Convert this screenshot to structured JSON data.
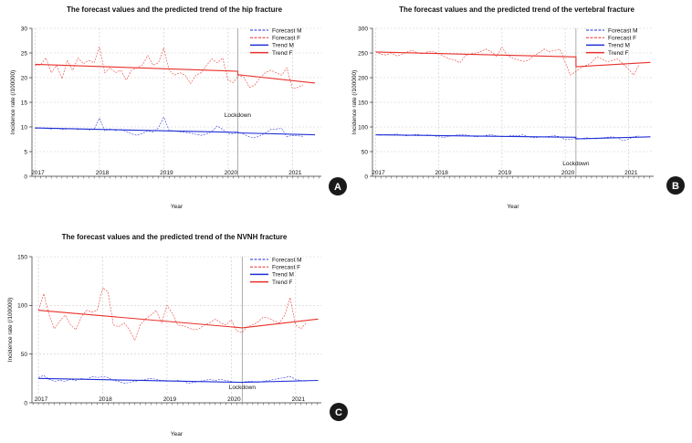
{
  "colors": {
    "male": "#1f2fd6",
    "female": "#e8302a",
    "grid": "#c9c9c9",
    "lockdown": "#9a9a9a",
    "badge": "#1a1a1a"
  },
  "chart_data": [
    {
      "type": "line",
      "panel": "A",
      "title": "The forecast values and the predicted trend of the hip fracture",
      "xlabel": "Year",
      "ylabel": "Incidence rate (/100000)",
      "ylim": [
        0,
        30
      ],
      "yticks": [
        0,
        5,
        10,
        15,
        20,
        25,
        30
      ],
      "xlim": [
        2016.95,
        2021.45
      ],
      "xticks": [
        2017,
        2018,
        2019,
        2020,
        2021
      ],
      "annotation": {
        "text": "Lockdown",
        "x": 2020.15
      },
      "legend": [
        "Forecast M",
        "Forecast F",
        "Trend M",
        "Trend F"
      ],
      "series": [
        {
          "name": "Forecast M",
          "style": "dashed",
          "x_start": 2017.0,
          "x_step": 0.0833,
          "values": [
            9.7,
            9.8,
            9.7,
            9.6,
            9.8,
            9.5,
            9.6,
            9.7,
            9.5,
            9.6,
            9.4,
            9.5,
            11.8,
            9.2,
            9.6,
            9.3,
            9.5,
            9.1,
            8.6,
            8.3,
            8.7,
            9.2,
            9.0,
            9.8,
            12.0,
            9.3,
            9.2,
            9.0,
            8.9,
            8.8,
            8.5,
            8.3,
            8.6,
            9.1,
            10.2,
            9.5,
            8.7,
            8.6,
            9.0,
            8.5,
            8.0,
            7.8,
            8.2,
            8.8,
            9.5,
            9.6,
            9.7,
            8.0,
            8.3,
            8.2,
            8.1
          ]
        },
        {
          "name": "Forecast F",
          "style": "dashed",
          "x_start": 2017.0,
          "x_step": 0.0833,
          "values": [
            22.5,
            22.6,
            24.0,
            21.0,
            22.5,
            19.8,
            23.5,
            21.5,
            24.0,
            22.8,
            23.5,
            23.0,
            26.2,
            21.0,
            22.0,
            21.0,
            21.5,
            19.5,
            21.5,
            22.0,
            22.5,
            24.5,
            22.5,
            23.0,
            26.0,
            21.5,
            20.5,
            21.0,
            20.5,
            18.8,
            20.5,
            21.0,
            22.5,
            23.8,
            23.0,
            24.0,
            19.5,
            19.0,
            20.5,
            20.0,
            18.0,
            18.5,
            20.0,
            21.0,
            21.5,
            21.0,
            20.5,
            22.0,
            17.8,
            18.0,
            18.5
          ]
        },
        {
          "name": "Trend M",
          "style": "solid",
          "x": [
            2017.0,
            2020.15,
            2020.15,
            2021.35
          ],
          "values": [
            9.8,
            8.9,
            8.8,
            8.4
          ]
        },
        {
          "name": "Trend F",
          "style": "solid",
          "x": [
            2017.0,
            2020.15,
            2020.15,
            2021.35
          ],
          "values": [
            22.7,
            21.3,
            20.6,
            18.9
          ]
        }
      ]
    },
    {
      "type": "line",
      "panel": "B",
      "title": "The forecast values and the predicted trend of the vertebral fracture",
      "xlabel": "Year",
      "ylabel": "Incidence rate (/100000)",
      "ylim": [
        0,
        300
      ],
      "yticks": [
        0,
        50,
        100,
        150,
        200,
        250,
        300
      ],
      "xlim": [
        2016.95,
        2021.4
      ],
      "xticks": [
        2017,
        2018,
        2019,
        2020,
        2021
      ],
      "annotation": {
        "text": "Lockdown",
        "x": 2020.17
      },
      "legend": [
        "Forecast M",
        "Forecast F",
        "Trend M",
        "Trend F"
      ],
      "series": [
        {
          "name": "Forecast M",
          "style": "dashed",
          "x_start": 2017.0,
          "x_step": 0.0833,
          "values": [
            84,
            83,
            85,
            84,
            86,
            83,
            82,
            84,
            85,
            83,
            84,
            82,
            80,
            79,
            81,
            83,
            85,
            84,
            82,
            80,
            81,
            83,
            84,
            82,
            80,
            81,
            83,
            82,
            84,
            80,
            78,
            79,
            80,
            81,
            82,
            80,
            74,
            75,
            77,
            76,
            78,
            77,
            76,
            78,
            79,
            80,
            78,
            72,
            75,
            80,
            82
          ]
        },
        {
          "name": "Forecast F",
          "style": "dashed",
          "x_start": 2017.0,
          "x_step": 0.0833,
          "values": [
            252,
            248,
            246,
            250,
            244,
            247,
            252,
            255,
            250,
            248,
            253,
            252,
            249,
            243,
            238,
            236,
            230,
            244,
            248,
            250,
            253,
            258,
            252,
            243,
            262,
            245,
            240,
            236,
            233,
            235,
            244,
            250,
            258,
            253,
            255,
            258,
            232,
            205,
            212,
            220,
            225,
            230,
            242,
            238,
            232,
            235,
            238,
            228,
            218,
            205,
            225
          ]
        },
        {
          "name": "Trend M",
          "style": "solid",
          "x": [
            2017.0,
            2020.17,
            2020.17,
            2021.35
          ],
          "values": [
            84,
            79,
            76,
            80
          ]
        },
        {
          "name": "Trend F",
          "style": "solid",
          "x": [
            2017.0,
            2020.17,
            2020.17,
            2021.35
          ],
          "values": [
            252,
            242,
            222,
            231
          ]
        }
      ]
    },
    {
      "type": "line",
      "panel": "C",
      "title": "The forecast values and the predicted trend of the NVNH fracture",
      "xlabel": "Year",
      "ylabel": "Incidence rate (/100000)",
      "ylim": [
        0,
        150
      ],
      "yticks": [
        0,
        50,
        100,
        150
      ],
      "xlim": [
        2016.9,
        2021.4
      ],
      "xticks": [
        2017,
        2018,
        2019,
        2020,
        2021
      ],
      "annotation": {
        "text": "Lockdown",
        "x": 2020.17
      },
      "legend": [
        "Forecast M",
        "Forecast F",
        "Trend M",
        "Trend F"
      ],
      "series": [
        {
          "name": "Forecast M",
          "style": "dashed",
          "x_start": 2017.0,
          "x_step": 0.0833,
          "values": [
            26,
            28,
            24,
            22,
            23,
            22,
            24,
            23,
            25,
            24,
            27,
            26,
            27,
            26,
            23,
            22,
            20,
            21,
            22,
            23,
            24,
            25,
            24,
            23,
            23,
            22,
            23,
            22,
            20,
            21,
            22,
            23,
            24,
            23,
            24,
            23,
            22,
            21,
            21,
            22,
            22,
            21,
            22,
            23,
            24,
            25,
            26,
            27,
            24,
            23,
            22
          ]
        },
        {
          "name": "Forecast F",
          "style": "dashed",
          "x_start": 2017.0,
          "x_step": 0.0833,
          "values": [
            95,
            112,
            90,
            76,
            84,
            90,
            80,
            75,
            88,
            95,
            93,
            95,
            118,
            114,
            80,
            78,
            82,
            75,
            64,
            80,
            86,
            90,
            95,
            82,
            100,
            92,
            80,
            79,
            77,
            75,
            76,
            80,
            82,
            86,
            82,
            80,
            85,
            74,
            72,
            78,
            80,
            83,
            88,
            87,
            84,
            82,
            90,
            108,
            80,
            76,
            82
          ]
        },
        {
          "name": "Trend M",
          "style": "solid",
          "x": [
            2017.0,
            2020.17,
            2021.35
          ],
          "values": [
            25,
            21,
            23
          ]
        },
        {
          "name": "Trend F",
          "style": "solid",
          "x": [
            2017.0,
            2020.17,
            2021.35
          ],
          "values": [
            95,
            77,
            86
          ]
        }
      ]
    }
  ]
}
